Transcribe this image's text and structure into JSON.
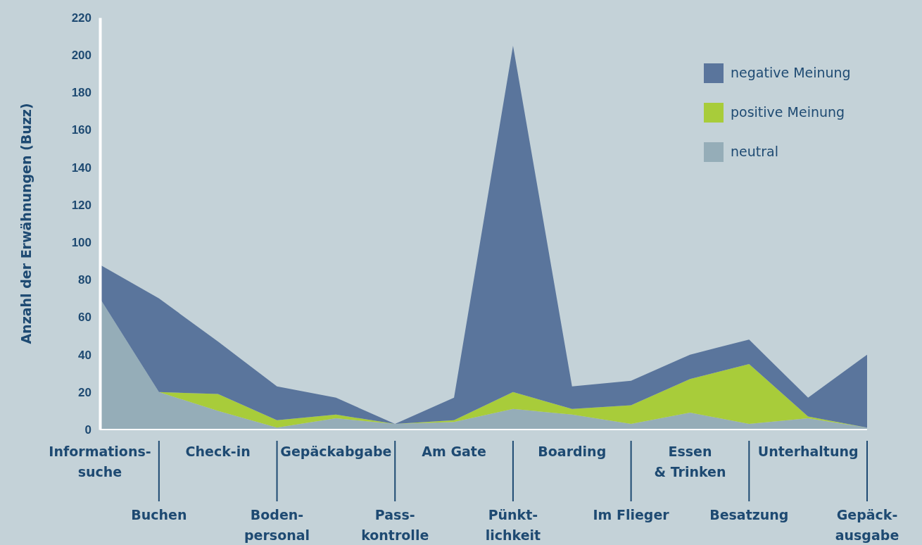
{
  "chart_data": {
    "type": "area",
    "stacked": true,
    "ylabel": "Anzahl der Erwähnungen (Buzz)",
    "categories": [
      "Informations-\nsuche",
      "Buchen",
      "Check-in",
      "Boden-\npersonal",
      "Gepäckabgabe",
      "Pass-\nkontrolle",
      "Am Gate",
      "Pünkt-\nlichkeit",
      "Boarding",
      "Im Flieger",
      "Essen\n& Trinken",
      "Besatzung",
      "Unterhaltung",
      "Gepäck-\nausgabe"
    ],
    "series": [
      {
        "name": "neutral",
        "color": "#95adb8",
        "values": [
          70,
          20,
          10,
          1,
          6,
          3,
          4,
          11,
          8,
          3,
          9,
          3,
          6,
          1
        ]
      },
      {
        "name": "positive Meinung",
        "color": "#a8cc3a",
        "values": [
          0,
          0,
          9,
          4,
          2,
          0,
          1,
          9,
          3,
          10,
          18,
          32,
          1,
          0
        ]
      },
      {
        "name": "negative Meinung",
        "color": "#5a759c",
        "values": [
          18,
          50,
          28,
          18,
          9,
          0,
          12,
          185,
          12,
          13,
          13,
          13,
          10,
          39
        ]
      }
    ],
    "ylim": [
      0,
      220
    ],
    "yticks": [
      0,
      20,
      40,
      60,
      80,
      100,
      120,
      140,
      160,
      180,
      200,
      220
    ],
    "grid": false,
    "legend": "top right"
  }
}
